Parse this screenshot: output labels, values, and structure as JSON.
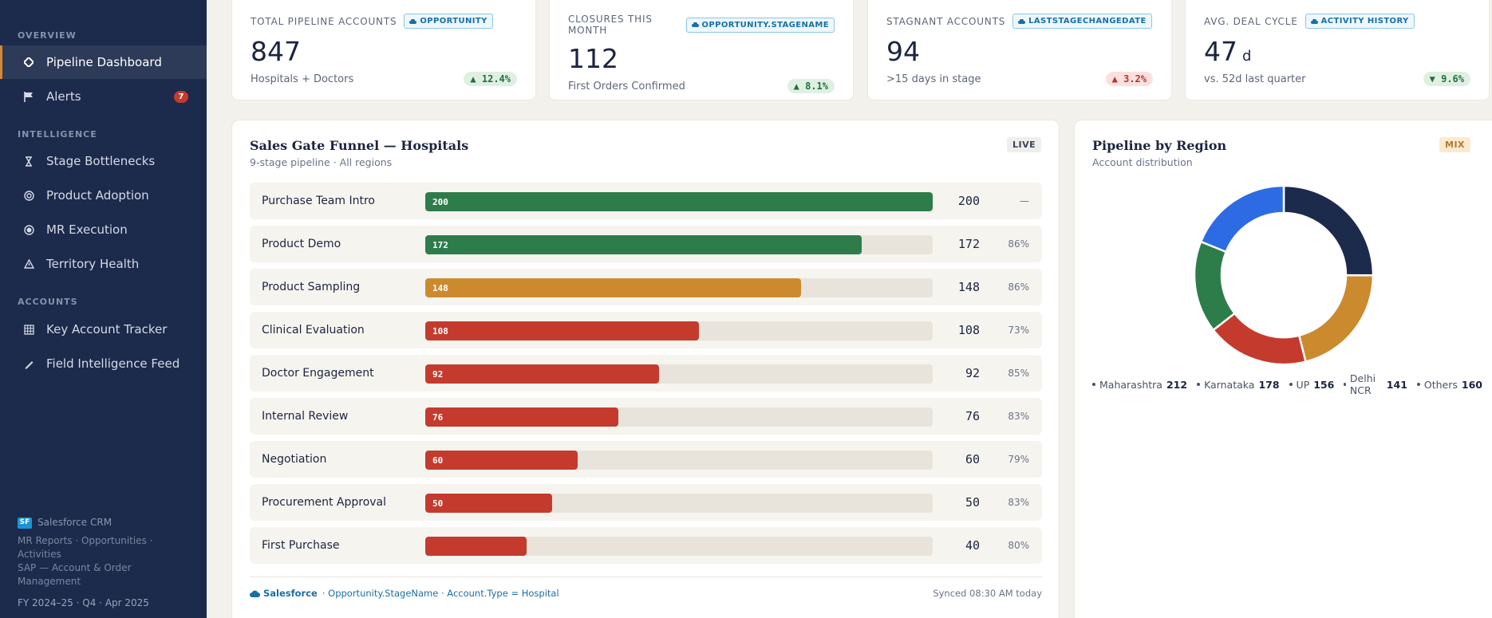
{
  "sidebar": {
    "sections": {
      "overview": "OVERVIEW",
      "intelligence": "INTELLIGENCE",
      "accounts": "ACCOUNTS"
    },
    "items": [
      {
        "label": "Pipeline Dashboard",
        "icon": "diamond-icon"
      },
      {
        "label": "Alerts",
        "icon": "flag-icon",
        "badge": "7"
      },
      {
        "label": "Stage Bottlenecks",
        "icon": "hourglass-icon"
      },
      {
        "label": "Product Adoption",
        "icon": "target-icon"
      },
      {
        "label": "MR Execution",
        "icon": "radio-icon"
      },
      {
        "label": "Territory Health",
        "icon": "warning-icon"
      },
      {
        "label": "Key Account Tracker",
        "icon": "grid-icon"
      },
      {
        "label": "Field Intelligence Feed",
        "icon": "pen-icon"
      }
    ],
    "footer": {
      "brand_chip": "SF",
      "brand": "Salesforce CRM",
      "line1": "MR Reports · Opportunities · Activities",
      "line2": "SAP — Account & Order Management",
      "period": "FY 2024–25 · Q4 · Apr 2025"
    }
  },
  "kpis": [
    {
      "label": "TOTAL PIPELINE ACCOUNTS",
      "source": "OPPORTUNITY",
      "value": "847",
      "unit": "",
      "sub": "Hospitals + Doctors",
      "delta": "▲ 12.4%",
      "trend": "good"
    },
    {
      "label": "CLOSURES THIS MONTH",
      "source": "OPPORTUNITY.STAGENAME",
      "value": "112",
      "unit": "",
      "sub": "First Orders Confirmed",
      "delta": "▲ 8.1%",
      "trend": "good"
    },
    {
      "label": "STAGNANT ACCOUNTS",
      "source": "LASTSTAGECHANGEDATE",
      "value": "94",
      "unit": "",
      "sub": ">15 days in stage",
      "delta": "▲ 3.2%",
      "trend": "bad"
    },
    {
      "label": "AVG. DEAL CYCLE",
      "source": "ACTIVITY HISTORY",
      "value": "47",
      "unit": "d",
      "sub": "vs. 52d last quarter",
      "delta": "▼ 9.6%",
      "trend": "good"
    }
  ],
  "funnel": {
    "title": "Sales Gate Funnel — Hospitals",
    "subtitle": "9-stage pipeline · All regions",
    "badge": "LIVE",
    "max": 200,
    "stages": [
      {
        "label": "Purchase Team Intro",
        "value": 200,
        "bar_label": "200",
        "pct": "—",
        "color": "#2d7d4b"
      },
      {
        "label": "Product Demo",
        "value": 172,
        "bar_label": "172",
        "pct": "86%",
        "color": "#2d7d4b"
      },
      {
        "label": "Product Sampling",
        "value": 148,
        "bar_label": "148",
        "pct": "86%",
        "color": "#cc8a2f"
      },
      {
        "label": "Clinical Evaluation",
        "value": 108,
        "bar_label": "108",
        "pct": "73%",
        "color": "#c43b2e"
      },
      {
        "label": "Doctor Engagement",
        "value": 92,
        "bar_label": "92",
        "pct": "85%",
        "color": "#c43b2e"
      },
      {
        "label": "Internal Review",
        "value": 76,
        "bar_label": "76",
        "pct": "83%",
        "color": "#c43b2e"
      },
      {
        "label": "Negotiation",
        "value": 60,
        "bar_label": "60",
        "pct": "79%",
        "color": "#c43b2e"
      },
      {
        "label": "Procurement Approval",
        "value": 50,
        "bar_label": "50",
        "pct": "83%",
        "color": "#c43b2e"
      },
      {
        "label": "First Purchase",
        "value": 40,
        "bar_label": "",
        "pct": "80%",
        "color": "#c43b2e"
      }
    ],
    "footer": {
      "brand": "Salesforce",
      "query": "· Opportunity.StageName · Account.Type = Hospital",
      "synced": "Synced 08:30 AM today"
    }
  },
  "region": {
    "title": "Pipeline by Region",
    "subtitle": "Account distribution",
    "badge": "MIX",
    "chart_data": {
      "type": "pie",
      "categories": [
        "Maharashtra",
        "Karnataka",
        "UP",
        "Delhi NCR",
        "Others"
      ],
      "values": [
        212,
        178,
        156,
        141,
        160
      ],
      "colors": [
        "#1c2a4c",
        "#cc8a2f",
        "#c43b2e",
        "#2d7d4b",
        "#2c6be3"
      ]
    }
  }
}
